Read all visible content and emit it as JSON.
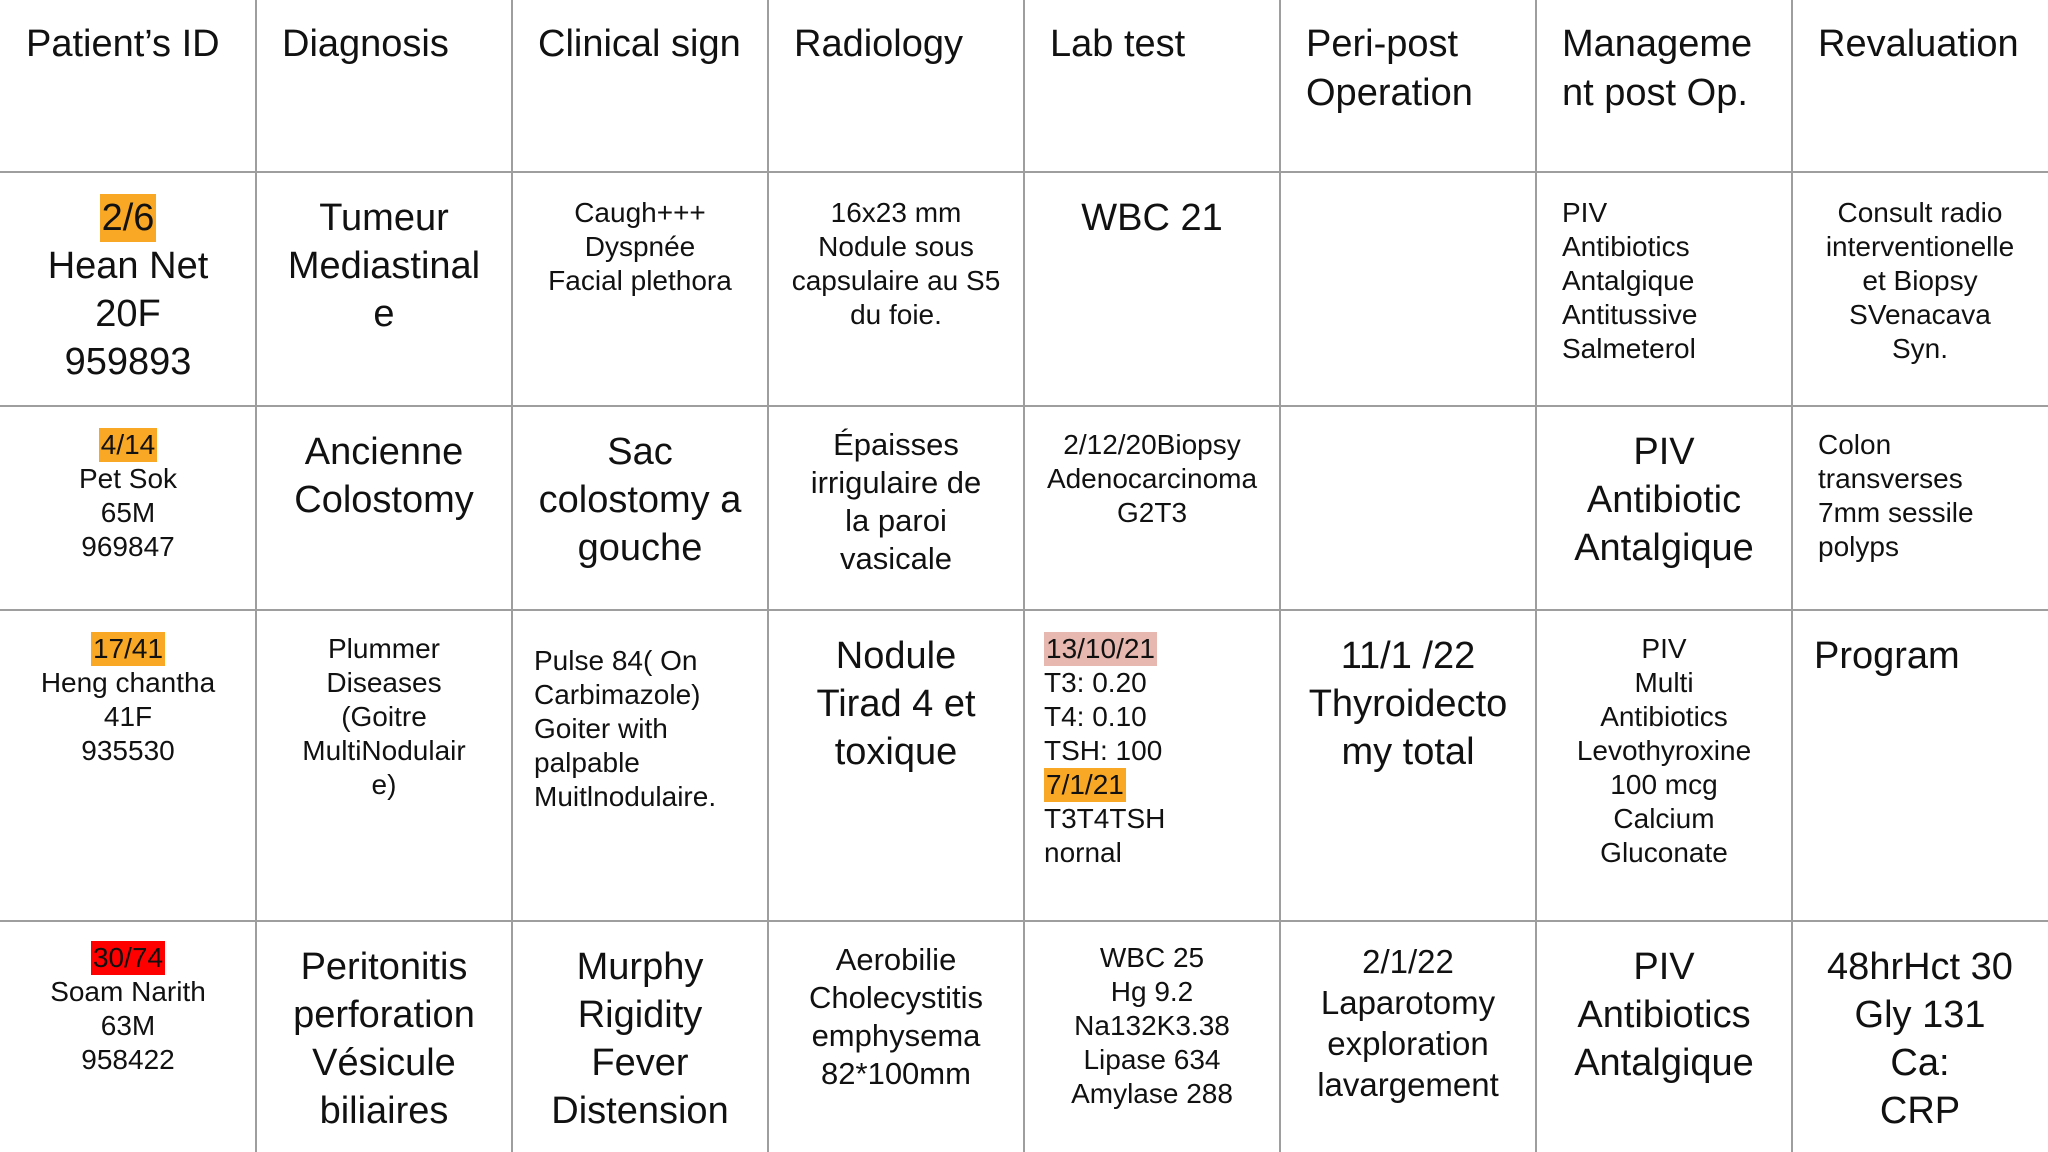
{
  "table": {
    "headers": [
      [
        "Patient’s ID"
      ],
      [
        "Diagnosis"
      ],
      [
        "Clinical sign"
      ],
      [
        "Radiology"
      ],
      [
        "Lab test"
      ],
      [
        "Peri-post",
        "Operation"
      ],
      [
        "Manageme",
        "nt post Op."
      ],
      [
        "Revaluation"
      ]
    ],
    "rows": [
      [
        {
          "lines": [
            "2/6",
            "Hean Net",
            "20F",
            "959893"
          ],
          "highlight": {
            "line": 0,
            "color": "#f9a825"
          }
        },
        {
          "lines": [
            "Tumeur",
            "Mediastinal",
            "e"
          ]
        },
        {
          "lines": [
            "Caugh+++",
            "Dyspnée",
            "Facial plethora"
          ]
        },
        {
          "lines": [
            "16x23 mm",
            "Nodule sous",
            "capsulaire au S5",
            "du foie."
          ]
        },
        {
          "lines": [
            "WBC 21"
          ]
        },
        {
          "lines": []
        },
        {
          "lines": [
            "PIV",
            "Antibiotics",
            "Antalgique",
            "Antitussive",
            "Salmeterol"
          ]
        },
        {
          "lines": [
            "Consult radio",
            "interventionelle",
            "et Biopsy",
            "SVenacava",
            "Syn."
          ]
        }
      ],
      [
        {
          "lines": [
            "4/14",
            "Pet Sok",
            "65M",
            "969847"
          ],
          "highlight": {
            "line": 0,
            "color": "#f9a825"
          }
        },
        {
          "lines": [
            "Ancienne",
            "Colostomy"
          ]
        },
        {
          "lines": [
            "Sac",
            "colostomy a",
            "gouche"
          ]
        },
        {
          "lines": [
            "Épaisses",
            "irrigulaire de",
            "la paroi",
            "vasicale"
          ]
        },
        {
          "lines": [
            "2/12/20Biopsy",
            "Adenocarcinoma",
            "G2T3"
          ]
        },
        {
          "lines": []
        },
        {
          "lines": [
            "PIV",
            "Antibiotic",
            "Antalgique"
          ]
        },
        {
          "lines": [
            "Colon",
            "transverses",
            "7mm sessile",
            "polyps"
          ]
        }
      ],
      [
        {
          "lines": [
            "17/41",
            "Heng chantha",
            "41F",
            "935530"
          ],
          "highlight": {
            "line": 0,
            "color": "#f9a825"
          }
        },
        {
          "lines": [
            "Plummer",
            "Diseases",
            "(Goitre",
            "MultiNodulair",
            "e)"
          ]
        },
        {
          "lines": [
            "Pulse 84( On",
            "Carbimazole)",
            "Goiter with",
            "palpable",
            "Muitlnodulaire."
          ]
        },
        {
          "lines": [
            "Nodule",
            "Tirad 4 et",
            "toxique"
          ]
        },
        {
          "lines": [
            "13/10/21",
            "T3: 0.20",
            "T4: 0.10",
            "TSH: 100",
            "7/1/21",
            " T3T4TSH",
            "nornal"
          ],
          "highlights": [
            {
              "line": 0,
              "color": "#e6b8af"
            },
            {
              "line": 4,
              "color": "#f9a825"
            }
          ]
        },
        {
          "lines": [
            "11/1 /22",
            "Thyroidecto",
            "my total"
          ]
        },
        {
          "lines": [
            "PIV",
            "Multi",
            "Antibiotics",
            "Levothyroxine",
            "100 mcg",
            "Calcium",
            "Gluconate"
          ]
        },
        {
          "lines": [
            "Program"
          ]
        }
      ],
      [
        {
          "lines": [
            "30/74",
            "Soam Narith",
            "63M",
            "958422"
          ],
          "highlight": {
            "line": 0,
            "color": "#ff0000"
          }
        },
        {
          "lines": [
            "Peritonitis",
            "perforation",
            "Vésicule",
            "biliaires"
          ]
        },
        {
          "lines": [
            "Murphy",
            "Rigidity",
            "Fever",
            "Distension"
          ]
        },
        {
          "lines": [
            "Aerobilie",
            "Cholecystitis",
            "emphysema",
            "82*100mm"
          ]
        },
        {
          "lines": [
            "WBC 25",
            "Hg 9.2",
            "Na132K3.38",
            "Lipase 634",
            "Amylase 288"
          ]
        },
        {
          "lines": [
            "2/1/22",
            "Laparotomy",
            "exploration",
            "lavargement"
          ]
        },
        {
          "lines": [
            "PIV",
            "Antibiotics",
            "Antalgique"
          ]
        },
        {
          "lines": [
            "48hrHct 30",
            "Gly 131",
            "Ca:",
            "CRP"
          ]
        }
      ]
    ]
  },
  "colors": {
    "grid": "#9e9e9e",
    "highlight_orange": "#f9a825",
    "highlight_pink": "#e6b8af",
    "highlight_red": "#ff0000"
  }
}
